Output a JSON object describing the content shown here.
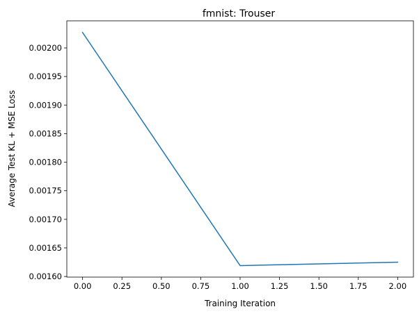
{
  "chart_data": {
    "type": "line",
    "title": "fmnist: Trouser",
    "xlabel": "Training Iteration",
    "ylabel": "Average Test KL + MSE Loss",
    "x": [
      0,
      1,
      2
    ],
    "series": [
      {
        "values": [
          0.002027,
          0.001619,
          0.001625
        ],
        "color": "#1f77b4"
      }
    ],
    "xlim": [
      -0.1,
      2.1
    ],
    "ylim": [
      0.0015989,
      0.0020474
    ],
    "xticks": [
      0.0,
      0.25,
      0.5,
      0.75,
      1.0,
      1.25,
      1.5,
      1.75,
      2.0
    ],
    "xtick_labels": [
      "0.00",
      "0.25",
      "0.50",
      "0.75",
      "1.00",
      "1.25",
      "1.50",
      "1.75",
      "2.00"
    ],
    "yticks": [
      0.0016,
      0.00165,
      0.0017,
      0.00175,
      0.0018,
      0.00185,
      0.0019,
      0.00195,
      0.002
    ],
    "ytick_labels": [
      "0.00160",
      "0.00165",
      "0.00170",
      "0.00175",
      "0.00180",
      "0.00185",
      "0.00190",
      "0.00195",
      "0.00200"
    ],
    "grid": false,
    "legend": "none"
  }
}
